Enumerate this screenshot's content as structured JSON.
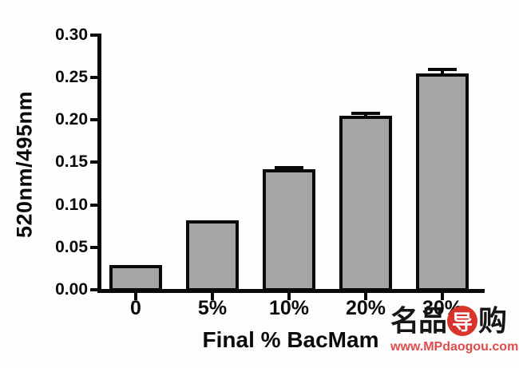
{
  "chart_data": {
    "type": "bar",
    "title": "",
    "categories": [
      "0",
      "5%",
      "10%",
      "20%",
      "30%"
    ],
    "values": [
      0.029,
      0.082,
      0.142,
      0.205,
      0.255
    ],
    "errors_plus": [
      0,
      0,
      0.004,
      0.005,
      0.006
    ],
    "xlabel": "Final % BacMam",
    "ylabel": "520nm/495nm",
    "ylim": [
      0,
      0.3
    ],
    "ytick_labels": [
      "0.00",
      "0.05",
      "0.10",
      "0.15",
      "0.20",
      "0.25",
      "0.30"
    ],
    "legend": "none",
    "grid": "off",
    "bar_fill_color": "#a5a5a7",
    "bar_border_color": "#0a0a0a",
    "axis_color": "#0a0a0a"
  },
  "watermark": {
    "logo_chars": [
      {
        "text": "名",
        "style": "black"
      },
      {
        "text": "品",
        "style": "black"
      },
      {
        "text": "导",
        "style": "red-circle"
      },
      {
        "text": "购",
        "style": "black"
      }
    ],
    "url": "www.MPdaogou.com",
    "logo_color": "#161616",
    "accent_red": "#d9332b",
    "url_color": "#e04b4b"
  }
}
